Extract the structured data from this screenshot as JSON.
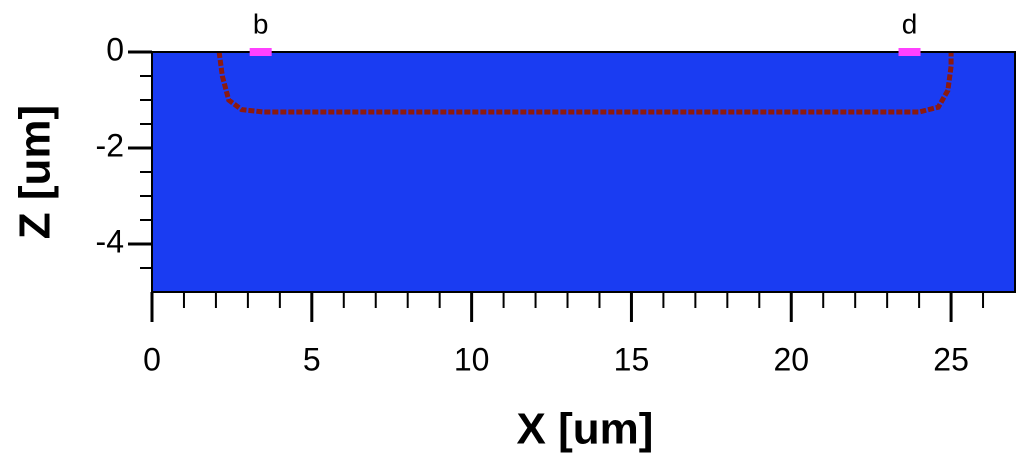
{
  "chart_data": {
    "type": "field",
    "xlabel": "X [um]",
    "ylabel": "Z [um]",
    "xlim": [
      0,
      27
    ],
    "ylim": [
      -5,
      0
    ],
    "xticks": [
      0,
      5,
      10,
      15,
      20,
      25
    ],
    "xminorticks": [
      1,
      2,
      3,
      4,
      6,
      7,
      8,
      9,
      11,
      12,
      13,
      14,
      16,
      17,
      18,
      19,
      21,
      22,
      23,
      24,
      26
    ],
    "yticks": [
      -4,
      -2,
      0
    ],
    "yminorticks": [
      -4.5,
      -3.5,
      -3,
      -2.5,
      -1.5,
      -1,
      -0.5
    ],
    "background_color": "#1a3cf2",
    "series": [
      {
        "color": "#8b1a10",
        "x": [
          2.1,
          2.2,
          2.4,
          2.8,
          3.5,
          24.0,
          24.6,
          24.9,
          25.0,
          25.0
        ],
        "values": [
          0,
          -0.5,
          -1.0,
          -1.2,
          -1.25,
          -1.25,
          -1.15,
          -0.8,
          -0.3,
          0
        ]
      }
    ],
    "markers": [
      {
        "label": "b",
        "x": 3.4,
        "color": "#ff40ff"
      },
      {
        "label": "d",
        "x": 23.7,
        "color": "#ff40ff"
      }
    ]
  }
}
